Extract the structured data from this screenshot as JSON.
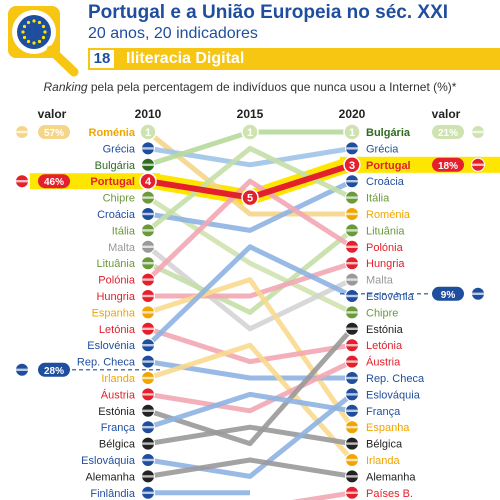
{
  "header": {
    "title": "Portugal e a União Europeia no séc. XXI",
    "subtitle": "20 anos, 20 indicadores",
    "indicator_number": "18",
    "indicator_name": "Iliteracia Digital",
    "description_emphasis": "Ranking",
    "description_rest": " pela pela percentagem de indivíduos que nunca usou a Internet (%)*"
  },
  "colors": {
    "title_blue": "#1f4e9e",
    "band_yellow": "#f7c613",
    "portugal_red": "#e3202b",
    "highlight_yellow": "#ffe600",
    "bulgaria_green": "#2e6b1f",
    "romania_orange": "#f0a500"
  },
  "chart_data": {
    "type": "bump",
    "x": [
      "2010",
      "2015",
      "2020"
    ],
    "valor_label": "valor",
    "left_values": [
      {
        "country": "Roménia",
        "value": "57%",
        "flag": "flag-romania"
      },
      {
        "country": "Portugal",
        "value": "46%",
        "flag": "flag-portugal"
      },
      {
        "country": "UE",
        "value": "28%",
        "flag": "flag-eu"
      }
    ],
    "right_values": [
      {
        "country": "Bulgária",
        "value": "21%",
        "flag": "flag-bulgaria"
      },
      {
        "country": "Portugal",
        "value": "18%",
        "flag": "flag-portugal"
      },
      {
        "country": "UE",
        "value": "9%",
        "flag": "flag-eu"
      }
    ],
    "rank_badges": [
      {
        "country": "Roménia",
        "year": "2010",
        "rank": "1"
      },
      {
        "country": "Portugal",
        "year": "2010",
        "rank": "4"
      },
      {
        "country": "Bulgária",
        "year": "2015",
        "rank": "1"
      },
      {
        "country": "Portugal",
        "year": "2015",
        "rank": "5"
      },
      {
        "country": "Bulgária",
        "year": "2020",
        "rank": "1"
      },
      {
        "country": "Portugal",
        "year": "2020",
        "rank": "3"
      }
    ],
    "eu_2010_between_ranks": [
      15,
      16
    ],
    "eu_2020_between_ranks": [
      10,
      11
    ],
    "countries_2010": [
      "Roménia",
      "Grécia",
      "Bulgária",
      "Portugal",
      "Chipre",
      "Croácia",
      "Itália",
      "Malta",
      "Lituânia",
      "Polónia",
      "Hungria",
      "Espanha",
      "Letónia",
      "Eslovénia",
      "Rep. Checa",
      "Irlanda",
      "Áustria",
      "Estónia",
      "França",
      "Bélgica",
      "Eslováquia",
      "Alemanha",
      "Finlândia"
    ],
    "countries_2020": [
      "Bulgária",
      "Grécia",
      "Portugal",
      "Croácia",
      "Itália",
      "Roménia",
      "Lituânia",
      "Polónia",
      "Hungria",
      "Malta",
      "Eslovénia",
      "Chipre",
      "Estónia",
      "Letónia",
      "Áustria",
      "Rep. Checa",
      "Eslováquia",
      "França",
      "Espanha",
      "Bélgica",
      "Irlanda",
      "Alemanha",
      "Países B."
    ],
    "series": [
      {
        "name": "Roménia",
        "ranks": [
          1,
          6,
          6
        ],
        "color": "#f5d58a"
      },
      {
        "name": "Grécia",
        "ranks": [
          2,
          3,
          2
        ],
        "color": "#9fc3e8"
      },
      {
        "name": "Bulgária",
        "ranks": [
          3,
          1,
          1
        ],
        "color": "#b7d99a"
      },
      {
        "name": "Portugal",
        "ranks": [
          4,
          5,
          3
        ],
        "color": "#e3202b"
      },
      {
        "name": "Chipre",
        "ranks": [
          5,
          9,
          12
        ],
        "color": "#cfe3b0"
      },
      {
        "name": "Croácia",
        "ranks": [
          6,
          7,
          4
        ],
        "color": "#8db3e2"
      },
      {
        "name": "Itália",
        "ranks": [
          7,
          2,
          5
        ],
        "color": "#c4dfa6"
      },
      {
        "name": "Malta",
        "ranks": [
          8,
          13,
          10
        ],
        "color": "#d4d4d4"
      },
      {
        "name": "Lituânia",
        "ranks": [
          9,
          12,
          7
        ],
        "color": "#c4dfa6"
      },
      {
        "name": "Polónia",
        "ranks": [
          10,
          4,
          8
        ],
        "color": "#f2a7b3"
      },
      {
        "name": "Hungria",
        "ranks": [
          11,
          11,
          9
        ],
        "color": "#f2a7b3"
      },
      {
        "name": "Espanha",
        "ranks": [
          12,
          10,
          19
        ],
        "color": "#f8d98e"
      },
      {
        "name": "Letónia",
        "ranks": [
          13,
          15,
          14
        ],
        "color": "#f2a7b3"
      },
      {
        "name": "Eslovénia",
        "ranks": [
          14,
          8,
          11
        ],
        "color": "#8db3e2"
      },
      {
        "name": "Rep. Checa",
        "ranks": [
          15,
          16,
          16
        ],
        "color": "#8db3e2"
      },
      {
        "name": "Irlanda",
        "ranks": [
          16,
          14,
          21
        ],
        "color": "#f8d98e"
      },
      {
        "name": "Áustria",
        "ranks": [
          17,
          18,
          15
        ],
        "color": "#f2a7b3"
      },
      {
        "name": "Estónia",
        "ranks": [
          18,
          20,
          13
        ],
        "color": "#999999"
      },
      {
        "name": "França",
        "ranks": [
          19,
          17,
          18
        ],
        "color": "#8db3e2"
      },
      {
        "name": "Bélgica",
        "ranks": [
          20,
          19,
          20
        ],
        "color": "#999999"
      },
      {
        "name": "Eslováquia",
        "ranks": [
          21,
          22,
          17
        ],
        "color": "#8db3e2"
      },
      {
        "name": "Alemanha",
        "ranks": [
          22,
          21,
          22
        ],
        "color": "#999999"
      },
      {
        "name": "Finlândia",
        "ranks": [
          23,
          23,
          null
        ],
        "color": "#8db3e2"
      },
      {
        "name": "Países B.",
        "ranks": [
          null,
          24,
          23
        ],
        "color": "#f2a7b3"
      }
    ],
    "label_colors": {
      "Roménia": "#f0a500",
      "Bulgária": "#2e6b1f",
      "Portugal": "#e3202b",
      "Grécia": "#1f4e9e",
      "Chipre": "#6a9a3a",
      "Croácia": "#1f4e9e",
      "Itália": "#6a9a3a",
      "Malta": "#999999",
      "Lituânia": "#6a9a3a",
      "Polónia": "#e3202b",
      "Hungria": "#e3202b",
      "Espanha": "#f0a500",
      "Letónia": "#e3202b",
      "Eslovénia": "#1f4e9e",
      "Rep. Checa": "#1f4e9e",
      "Irlanda": "#f0a500",
      "Áustria": "#e3202b",
      "Estónia": "#222222",
      "França": "#1f4e9e",
      "Bélgica": "#222222",
      "Eslováquia": "#1f4e9e",
      "Alemanha": "#222222",
      "Finlândia": "#1f4e9e",
      "Países B.": "#e3202b"
    }
  }
}
